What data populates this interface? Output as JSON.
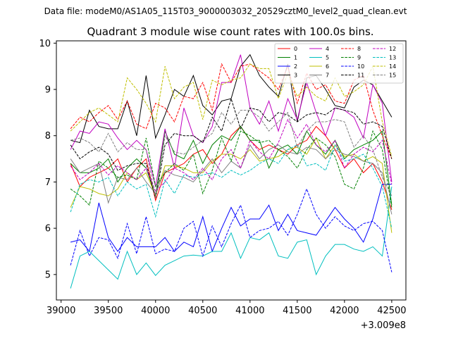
{
  "chart_data": {
    "type": "line",
    "suptitle": "Data file: modeM0/AS1A05_115T03_9000003032_20529cztM0_level2_quad_clean.evt",
    "title": "Quadrant 3 module wise count rates with 100.0s bins.",
    "xlabel": "",
    "ylabel": "",
    "x_offset_label": "+3.009e8",
    "xlim": [
      38950,
      42650
    ],
    "ylim": [
      4.45,
      10.05
    ],
    "x_ticks": [
      39000,
      39500,
      40000,
      40500,
      41000,
      41500,
      42000,
      42500
    ],
    "y_ticks": [
      5,
      6,
      7,
      8,
      9,
      10
    ],
    "grid": false,
    "legend_position": "top-right",
    "x": [
      39100,
      39200,
      39300,
      39400,
      39500,
      39600,
      39700,
      39800,
      39900,
      40000,
      40100,
      40200,
      40300,
      40400,
      40500,
      40600,
      40700,
      40800,
      40900,
      41000,
      41100,
      41200,
      41300,
      41400,
      41500,
      41600,
      41700,
      41800,
      41900,
      42000,
      42100,
      42200,
      42300,
      42400,
      42500
    ],
    "series": [
      {
        "name": "0",
        "color": "#ff0000",
        "dash": "solid",
        "values": [
          7.4,
          6.9,
          7.1,
          7.2,
          7.3,
          7.5,
          7.0,
          7.3,
          7.5,
          6.6,
          7.2,
          7.3,
          7.4,
          7.6,
          7.7,
          7.4,
          7.6,
          8.0,
          8.2,
          7.9,
          7.7,
          7.8,
          7.7,
          7.6,
          7.8,
          7.9,
          8.2,
          8.0,
          7.7,
          7.3,
          7.5,
          7.2,
          7.4,
          7.0,
          6.4
        ]
      },
      {
        "name": "1",
        "color": "#008000",
        "dash": "solid",
        "values": [
          7.4,
          7.2,
          7.2,
          7.3,
          7.5,
          7.0,
          7.3,
          7.5,
          7.3,
          6.7,
          8.1,
          7.6,
          7.5,
          7.9,
          7.4,
          7.8,
          8.0,
          7.9,
          8.2,
          7.9,
          7.9,
          7.3,
          7.7,
          7.8,
          7.6,
          8.1,
          7.8,
          7.6,
          7.9,
          7.5,
          7.7,
          7.8,
          7.9,
          8.1,
          6.5
        ]
      },
      {
        "name": "2",
        "color": "#0000ff",
        "dash": "solid",
        "values": [
          5.7,
          5.75,
          5.5,
          6.55,
          5.8,
          5.5,
          5.8,
          5.6,
          5.6,
          5.6,
          5.8,
          5.5,
          5.7,
          5.6,
          6.25,
          5.5,
          6.0,
          6.45,
          6.05,
          6.2,
          6.2,
          6.5,
          5.95,
          6.3,
          5.95,
          5.9,
          5.85,
          6.15,
          6.45,
          6.2,
          6.0,
          5.7,
          6.2,
          6.95,
          6.95
        ]
      },
      {
        "name": "3",
        "color": "#000000",
        "dash": "solid",
        "values": [
          7.9,
          7.85,
          8.55,
          8.2,
          8.15,
          8.15,
          8.75,
          8.0,
          9.3,
          7.95,
          8.45,
          9.0,
          8.85,
          9.3,
          8.65,
          8.45,
          8.75,
          8.8,
          9.5,
          9.75,
          9.3,
          9.05,
          8.85,
          9.55,
          8.3,
          9.25,
          9.3,
          9.0,
          8.65,
          8.6,
          9.05,
          9.2,
          9.1,
          8.75,
          8.4
        ]
      },
      {
        "name": "4",
        "color": "#c000c0",
        "dash": "solid",
        "values": [
          7.7,
          8.1,
          8.05,
          8.3,
          8.25,
          7.95,
          7.7,
          7.9,
          7.7,
          6.9,
          8.15,
          7.3,
          8.6,
          8.0,
          7.85,
          8.2,
          9.15,
          9.15,
          9.75,
          8.6,
          8.25,
          8.75,
          8.1,
          8.8,
          8.35,
          9.15,
          8.5,
          8.0,
          8.6,
          8.55,
          8.4,
          7.95,
          9.1,
          8.7,
          7.0
        ]
      },
      {
        "name": "5",
        "color": "#00bfbf",
        "dash": "solid",
        "values": [
          4.7,
          5.4,
          5.5,
          5.3,
          5.1,
          4.9,
          5.5,
          5.0,
          5.25,
          4.98,
          5.2,
          5.3,
          5.4,
          5.42,
          5.4,
          5.5,
          5.5,
          5.9,
          5.35,
          5.8,
          5.75,
          5.9,
          5.4,
          5.35,
          5.7,
          5.75,
          5.0,
          5.4,
          5.65,
          5.65,
          5.55,
          5.5,
          5.6,
          5.4,
          6.9
        ]
      },
      {
        "name": "6",
        "color": "#bfbf00",
        "dash": "solid",
        "values": [
          6.45,
          6.9,
          6.85,
          6.75,
          6.7,
          6.85,
          7.2,
          7.05,
          7.2,
          6.7,
          7.35,
          7.35,
          7.3,
          7.2,
          7.2,
          7.45,
          7.6,
          7.6,
          7.5,
          7.7,
          7.45,
          7.5,
          7.55,
          7.7,
          7.75,
          7.6,
          7.95,
          7.5,
          7.8,
          7.55,
          7.6,
          7.45,
          7.55,
          7.4,
          5.9
        ]
      },
      {
        "name": "7",
        "color": "#808080",
        "dash": "solid",
        "values": [
          7.5,
          7.2,
          7.3,
          7.4,
          6.55,
          7.1,
          7.05,
          7.3,
          7.0,
          6.75,
          7.25,
          7.15,
          7.1,
          7.0,
          7.25,
          7.5,
          7.2,
          7.45,
          7.3,
          7.8,
          7.5,
          7.7,
          7.8,
          7.65,
          7.6,
          7.75,
          7.7,
          7.5,
          7.7,
          7.6,
          7.55,
          7.45,
          7.4,
          7.2,
          6.3
        ]
      },
      {
        "name": "8",
        "color": "#ff0000",
        "dash": "dashed",
        "values": [
          8.15,
          8.4,
          8.3,
          8.5,
          8.65,
          8.35,
          8.75,
          8.25,
          8.15,
          8.7,
          8.6,
          8.3,
          8.85,
          8.8,
          9.15,
          8.55,
          9.55,
          9.15,
          9.5,
          9.55,
          9.4,
          9.25,
          9.0,
          9.5,
          8.7,
          9.35,
          9.0,
          9.1,
          8.75,
          8.7,
          9.2,
          9.3,
          8.55,
          8.0,
          7.5
        ]
      },
      {
        "name": "9",
        "color": "#008000",
        "dash": "dashed",
        "values": [
          6.85,
          6.7,
          6.5,
          7.45,
          7.3,
          7.1,
          7.15,
          7.05,
          7.95,
          6.9,
          7.2,
          7.4,
          7.25,
          7.6,
          6.75,
          7.25,
          7.95,
          7.45,
          8.1,
          8.0,
          7.85,
          7.9,
          7.7,
          7.55,
          7.3,
          7.7,
          7.95,
          7.8,
          7.55,
          6.95,
          6.85,
          7.3,
          8.1,
          7.7,
          6.45
        ]
      },
      {
        "name": "10",
        "color": "#0000ff",
        "dash": "dashed",
        "values": [
          5.2,
          5.95,
          5.4,
          5.8,
          5.75,
          5.35,
          6.1,
          5.45,
          6.25,
          5.45,
          5.55,
          5.5,
          6.0,
          6.15,
          5.4,
          6.05,
          5.6,
          6.1,
          6.5,
          5.8,
          5.95,
          6.0,
          6.15,
          5.85,
          6.3,
          6.85,
          6.3,
          6.0,
          6.25,
          6.05,
          5.95,
          6.1,
          6.15,
          5.95,
          5.05
        ]
      },
      {
        "name": "11",
        "color": "#000000",
        "dash": "dashed",
        "values": [
          7.8,
          7.5,
          7.65,
          7.75,
          7.6,
          7.25,
          7.35,
          7.4,
          7.4,
          6.65,
          7.8,
          8.05,
          8.0,
          8.0,
          7.85,
          8.4,
          8.1,
          8.8,
          8.15,
          8.6,
          8.55,
          8.3,
          8.5,
          8.45,
          8.3,
          8.45,
          8.5,
          8.45,
          8.6,
          8.55,
          8.5,
          8.25,
          8.3,
          8.2,
          7.5
        ]
      },
      {
        "name": "12",
        "color": "#c000c0",
        "dash": "dashed",
        "values": [
          7.35,
          7.05,
          7.2,
          7.4,
          7.15,
          7.35,
          7.2,
          7.05,
          7.3,
          6.8,
          7.0,
          7.3,
          7.2,
          7.05,
          7.3,
          7.05,
          7.5,
          7.7,
          7.3,
          7.9,
          7.65,
          7.5,
          7.85,
          8.35,
          7.95,
          8.25,
          7.8,
          7.65,
          7.9,
          7.3,
          7.6,
          7.75,
          7.65,
          7.9,
          6.95
        ]
      },
      {
        "name": "13",
        "color": "#00bfbf",
        "dash": "dashed",
        "values": [
          6.35,
          6.95,
          7.05,
          7.0,
          7.1,
          6.7,
          7.0,
          6.85,
          6.95,
          6.25,
          7.05,
          6.75,
          7.15,
          7.1,
          7.15,
          7.2,
          7.1,
          7.25,
          7.15,
          7.25,
          7.4,
          7.5,
          7.4,
          7.7,
          7.8,
          7.35,
          7.4,
          7.25,
          7.8,
          7.45,
          7.5,
          7.6,
          7.3,
          6.9,
          6.0
        ]
      },
      {
        "name": "14",
        "color": "#bfbf00",
        "dash": "dashed",
        "values": [
          8.1,
          8.3,
          8.5,
          8.6,
          8.45,
          8.3,
          9.25,
          9.0,
          8.7,
          8.3,
          9.5,
          8.8,
          9.05,
          9.15,
          8.35,
          9.2,
          9.1,
          9.2,
          9.25,
          9.55,
          9.45,
          9.45,
          8.8,
          9.35,
          8.85,
          9.05,
          8.85,
          8.75,
          9.25,
          8.85,
          8.95,
          9.1,
          9.5,
          8.3,
          7.55
        ]
      },
      {
        "name": "15",
        "color": "#808080",
        "dash": "dashed",
        "values": [
          7.9,
          7.95,
          7.85,
          7.65,
          8.05,
          7.65,
          7.85,
          7.7,
          7.7,
          6.65,
          8.0,
          7.65,
          7.6,
          7.75,
          7.9,
          8.05,
          8.5,
          8.25,
          8.55,
          8.55,
          8.4,
          8.1,
          8.3,
          8.5,
          7.75,
          8.1,
          8.3,
          8.3,
          8.35,
          8.3,
          7.75,
          8.0,
          7.7,
          7.1,
          6.7
        ]
      }
    ]
  }
}
